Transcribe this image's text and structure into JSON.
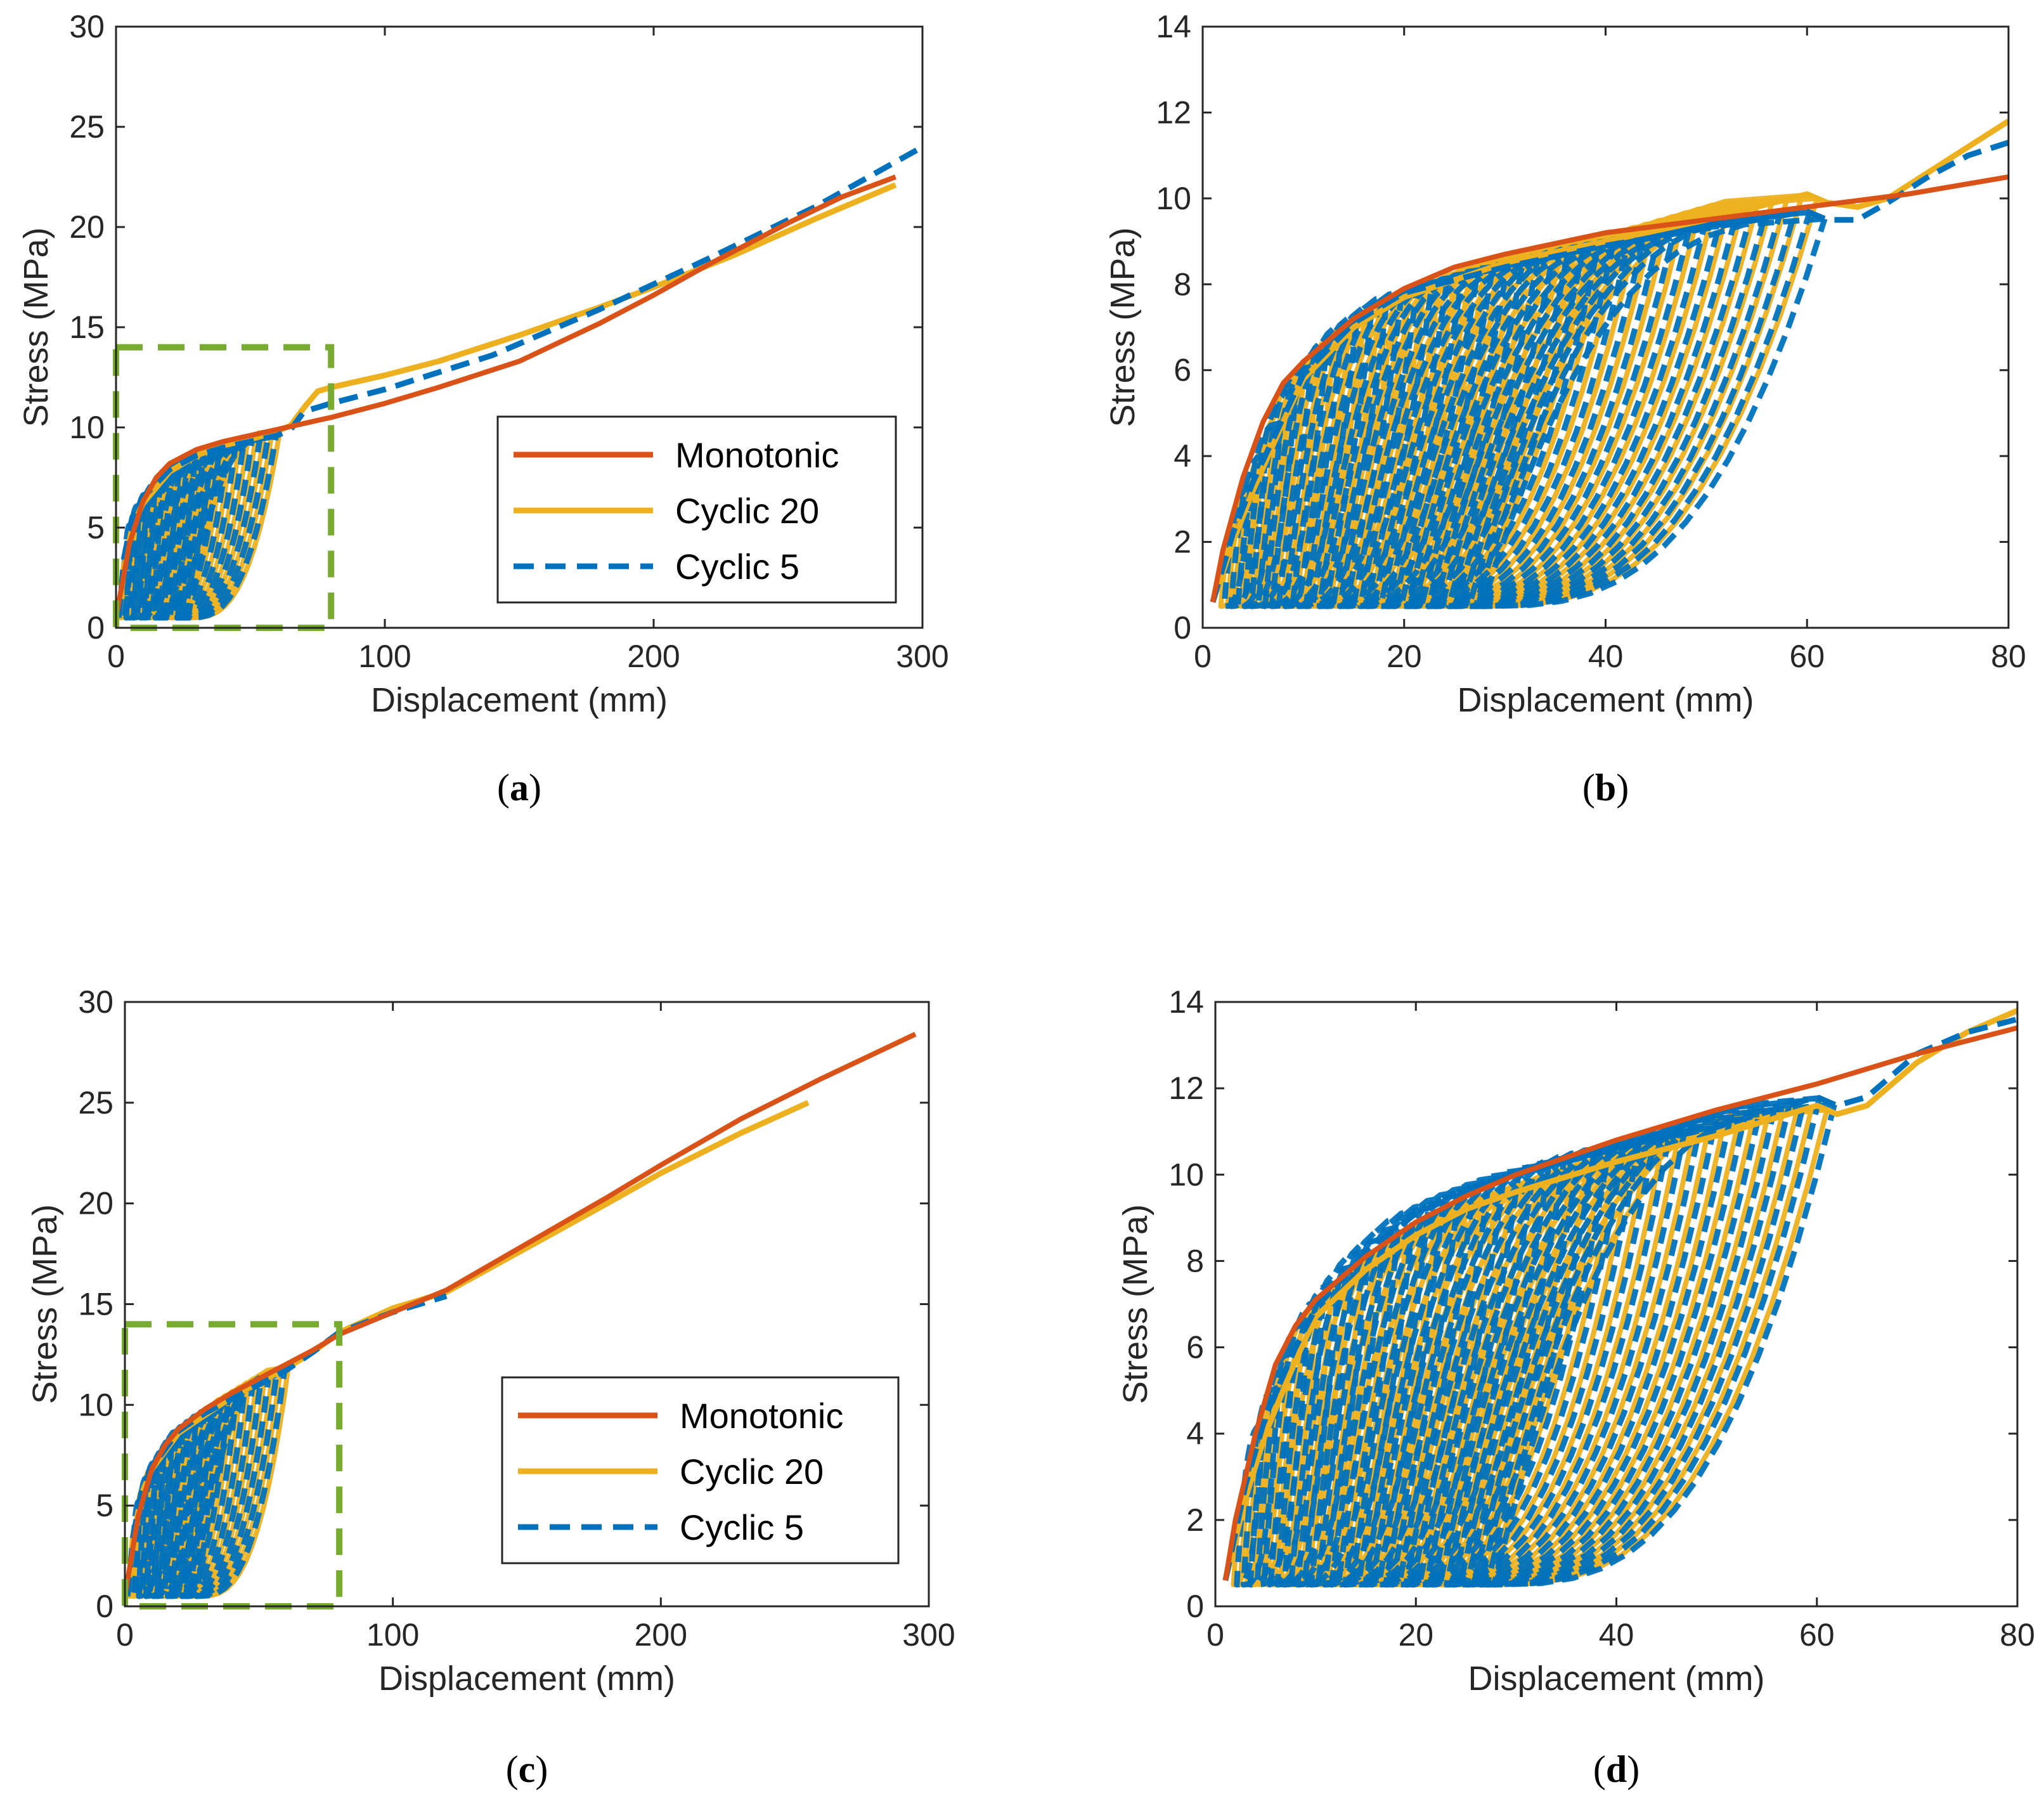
{
  "figure": {
    "colors": {
      "monotonic": "#D95319",
      "cyclic20": "#EDB120",
      "cyclic5": "#0072BD",
      "zoom_box": "#77AC30",
      "axis": "#262626"
    }
  },
  "chart_data": [
    {
      "id": "a",
      "type": "line",
      "caption_letter": "a",
      "xlabel": "Displacement (mm)",
      "ylabel": "Stress (MPa)",
      "xlim": [
        0,
        300
      ],
      "ylim": [
        0,
        30
      ],
      "xticks": [
        0,
        100,
        200,
        300
      ],
      "yticks": [
        0,
        5,
        10,
        15,
        20,
        25,
        30
      ],
      "legend": {
        "position": "bottom-right",
        "entries": [
          "Monotonic",
          "Cyclic 20",
          "Cyclic 5"
        ]
      },
      "zoom_box": {
        "x": [
          0,
          80
        ],
        "y": [
          0,
          14
        ]
      },
      "series": [
        {
          "name": "Monotonic",
          "style": "solid",
          "x": [
            0,
            5,
            10,
            15,
            20,
            30,
            40,
            50,
            60,
            70,
            80,
            100,
            120,
            150,
            180,
            200,
            220,
            250,
            270,
            290
          ],
          "y": [
            0.5,
            4.2,
            6.3,
            7.5,
            8.2,
            8.9,
            9.3,
            9.6,
            9.9,
            10.2,
            10.5,
            11.2,
            12.0,
            13.3,
            15.2,
            16.6,
            18.1,
            20.2,
            21.5,
            22.5
          ]
        },
        {
          "name": "Cyclic 20",
          "style": "solid",
          "x": [
            1,
            3,
            6,
            10,
            20,
            30,
            40,
            50,
            60,
            65,
            70,
            75,
            80,
            100,
            120,
            150,
            180,
            200,
            230,
            260,
            290
          ],
          "y": [
            0.5,
            3.0,
            5.0,
            6.2,
            7.8,
            8.6,
            9.1,
            9.4,
            9.8,
            10.1,
            11.0,
            11.8,
            12.0,
            12.6,
            13.3,
            14.6,
            16.0,
            17.0,
            18.6,
            20.4,
            22.1
          ]
        },
        {
          "name": "Cyclic 5",
          "style": "dashed",
          "x": [
            1,
            3,
            6,
            10,
            20,
            30,
            40,
            50,
            60,
            65,
            70,
            80,
            100,
            140,
            180,
            220,
            260,
            300
          ],
          "y": [
            0.5,
            3.5,
            5.5,
            6.5,
            7.9,
            8.6,
            9.0,
            9.3,
            9.6,
            9.9,
            10.8,
            11.2,
            11.9,
            13.6,
            15.9,
            18.4,
            21.0,
            24.0
          ]
        }
      ]
    },
    {
      "id": "b",
      "type": "line",
      "caption_letter": "b",
      "xlabel": "Displacement (mm)",
      "ylabel": "Stress (MPa)",
      "xlim": [
        0,
        80
      ],
      "ylim": [
        0,
        14
      ],
      "xticks": [
        0,
        20,
        40,
        60,
        80
      ],
      "yticks": [
        0,
        2,
        4,
        6,
        8,
        10,
        12,
        14
      ],
      "legend": null,
      "series": [
        {
          "name": "Monotonic",
          "style": "solid",
          "x": [
            1,
            2,
            4,
            6,
            8,
            10,
            15,
            20,
            25,
            30,
            40,
            50,
            60,
            70,
            80
          ],
          "y": [
            0.6,
            1.8,
            3.5,
            4.8,
            5.7,
            6.2,
            7.2,
            7.9,
            8.4,
            8.7,
            9.2,
            9.5,
            9.8,
            10.1,
            10.5
          ]
        },
        {
          "name": "Cyclic 20",
          "style": "solid",
          "x": [
            1,
            3,
            5,
            8,
            10,
            15,
            20,
            25,
            30,
            40,
            50,
            60,
            62,
            65,
            68,
            72,
            76,
            80
          ],
          "y": [
            0.6,
            2.0,
            3.2,
            4.8,
            5.8,
            7.0,
            7.7,
            8.1,
            8.5,
            9.0,
            9.5,
            10.1,
            9.9,
            9.8,
            10.0,
            10.6,
            11.2,
            11.8
          ]
        },
        {
          "name": "Cyclic 5",
          "style": "dashed",
          "x": [
            1,
            3,
            5,
            8,
            10,
            15,
            20,
            25,
            30,
            40,
            50,
            60,
            62,
            65,
            68,
            72,
            76,
            80
          ],
          "y": [
            0.6,
            2.2,
            3.4,
            4.9,
            5.9,
            7.1,
            7.8,
            8.1,
            8.4,
            8.9,
            9.3,
            9.7,
            9.5,
            9.5,
            9.9,
            10.5,
            11.0,
            11.3
          ]
        }
      ]
    },
    {
      "id": "c",
      "type": "line",
      "caption_letter": "c",
      "xlabel": "Displacement (mm)",
      "ylabel": "Stress (MPa)",
      "xlim": [
        0,
        300
      ],
      "ylim": [
        0,
        30
      ],
      "xticks": [
        0,
        100,
        200,
        300
      ],
      "yticks": [
        0,
        5,
        10,
        15,
        20,
        25,
        30
      ],
      "legend": {
        "position": "bottom-right",
        "entries": [
          "Monotonic",
          "Cyclic 20",
          "Cyclic 5"
        ]
      },
      "zoom_box": {
        "x": [
          0,
          80
        ],
        "y": [
          0,
          14
        ]
      },
      "series": [
        {
          "name": "Monotonic",
          "style": "solid",
          "x": [
            0,
            5,
            10,
            15,
            20,
            30,
            40,
            50,
            60,
            70,
            80,
            100,
            120,
            150,
            180,
            200,
            230,
            260,
            295
          ],
          "y": [
            0.5,
            4.5,
            6.8,
            8.0,
            8.8,
            9.8,
            10.6,
            11.3,
            12.0,
            12.7,
            13.5,
            14.6,
            15.7,
            18.0,
            20.3,
            21.9,
            24.2,
            26.2,
            28.4
          ]
        },
        {
          "name": "Cyclic 20",
          "style": "solid",
          "x": [
            1,
            3,
            6,
            10,
            20,
            30,
            40,
            50,
            60,
            70,
            80,
            100,
            120,
            150,
            180,
            200,
            230,
            255
          ],
          "y": [
            0.5,
            3.2,
            5.5,
            6.8,
            8.6,
            9.5,
            10.4,
            11.1,
            11.8,
            12.6,
            13.6,
            14.8,
            15.6,
            17.8,
            20.0,
            21.5,
            23.5,
            25.0
          ]
        },
        {
          "name": "Cyclic 5",
          "style": "dashed",
          "x": [
            1,
            3,
            6,
            10,
            20,
            30,
            40,
            50,
            60,
            70,
            80,
            100,
            120
          ],
          "y": [
            0.5,
            3.4,
            5.6,
            6.9,
            8.7,
            9.6,
            10.3,
            11.0,
            11.7,
            12.6,
            13.6,
            14.6,
            15.4
          ]
        }
      ]
    },
    {
      "id": "d",
      "type": "line",
      "caption_letter": "d",
      "xlabel": "Displacement (mm)",
      "ylabel": "Stress (MPa)",
      "xlim": [
        0,
        80
      ],
      "ylim": [
        0,
        14
      ],
      "xticks": [
        0,
        20,
        40,
        60,
        80
      ],
      "yticks": [
        0,
        2,
        4,
        6,
        8,
        10,
        12,
        14
      ],
      "legend": null,
      "series": [
        {
          "name": "Monotonic",
          "style": "solid",
          "x": [
            1,
            2,
            4,
            6,
            8,
            10,
            15,
            20,
            25,
            30,
            40,
            50,
            60,
            70,
            80
          ],
          "y": [
            0.6,
            2.0,
            4.0,
            5.6,
            6.5,
            7.1,
            8.1,
            8.9,
            9.5,
            10.0,
            10.8,
            11.5,
            12.1,
            12.8,
            13.4
          ]
        },
        {
          "name": "Cyclic 20",
          "style": "solid",
          "x": [
            1,
            3,
            5,
            8,
            10,
            15,
            20,
            25,
            30,
            40,
            50,
            60,
            62,
            65,
            70,
            75,
            80
          ],
          "y": [
            0.6,
            2.5,
            4.0,
            5.7,
            6.7,
            7.8,
            8.6,
            9.2,
            9.6,
            10.3,
            10.9,
            11.6,
            11.4,
            11.6,
            12.6,
            13.3,
            13.8
          ]
        },
        {
          "name": "Cyclic 5",
          "style": "dashed",
          "x": [
            1,
            3,
            5,
            8,
            10,
            15,
            20,
            25,
            30,
            40,
            50,
            60,
            62,
            65,
            70,
            75,
            80
          ],
          "y": [
            0.6,
            2.8,
            4.4,
            6.0,
            6.9,
            8.2,
            9.1,
            9.6,
            10.0,
            10.6,
            11.1,
            11.8,
            11.6,
            11.8,
            12.8,
            13.3,
            13.6
          ]
        }
      ]
    }
  ]
}
